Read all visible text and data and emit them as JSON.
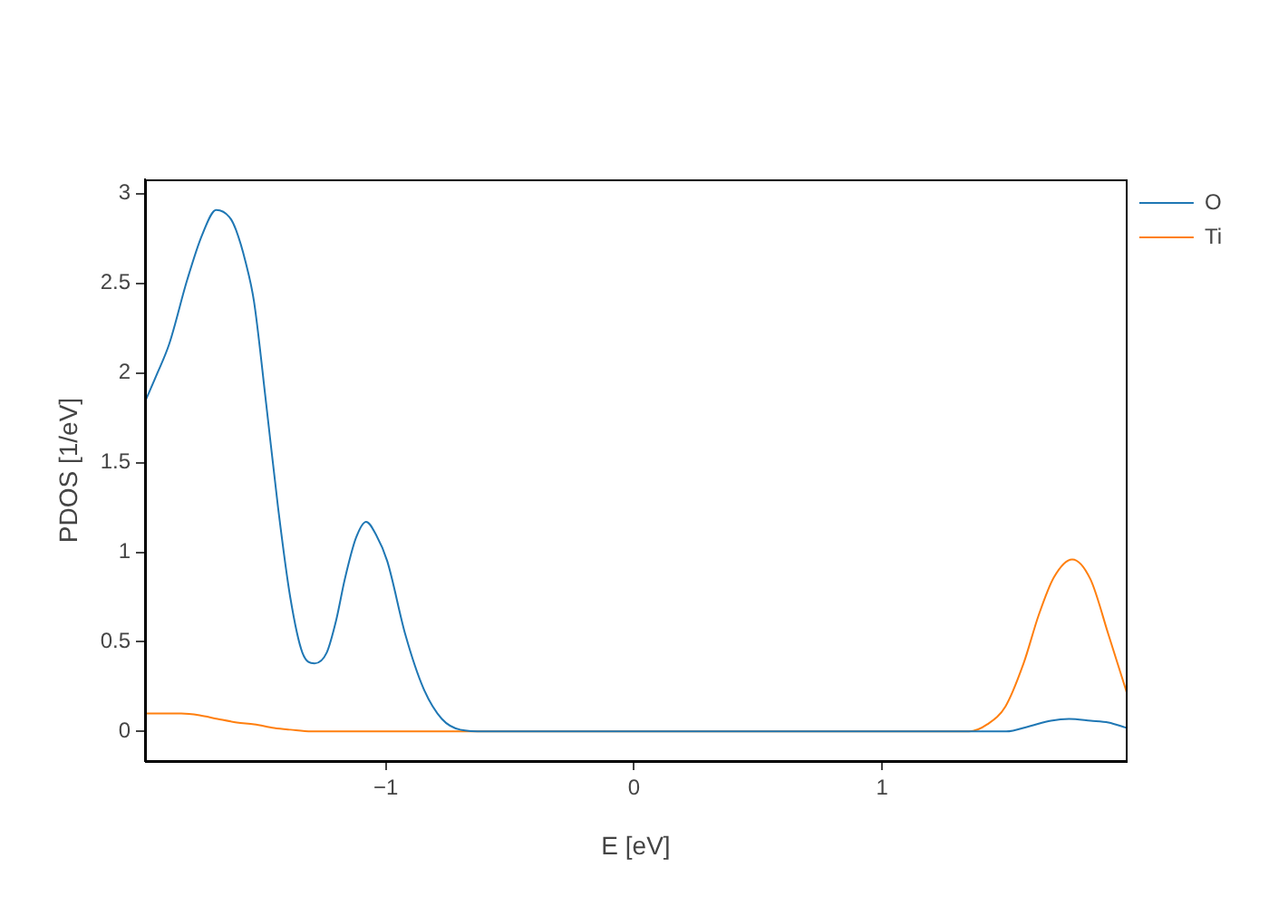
{
  "chart_data": {
    "type": "line",
    "xlabel": "E [eV]",
    "ylabel": "PDOS [1/eV]",
    "xlim": [
      -1.97,
      1.985
    ],
    "ylim": [
      -0.165,
      3.08
    ],
    "xticks": [
      {
        "value": -1,
        "label": "−1"
      },
      0,
      1
    ],
    "yticks": [
      0,
      0.5,
      1,
      1.5,
      2,
      2.5,
      3
    ],
    "grid": false,
    "legend": "top right",
    "series": [
      {
        "name": "O",
        "color": "#1f77b4",
        "x": [
          -1.97,
          -1.92,
          -1.873,
          -1.8,
          -1.74,
          -1.683,
          -1.63,
          -1.604,
          -1.565,
          -1.531,
          -1.482,
          -1.434,
          -1.385,
          -1.336,
          -1.287,
          -1.238,
          -1.2,
          -1.165,
          -1.12,
          -1.079,
          -1.04,
          -0.994,
          -0.921,
          -0.848,
          -0.774,
          -0.7,
          -0.6,
          1.4,
          1.5,
          1.595,
          1.68,
          1.753,
          1.84,
          1.912,
          1.985
        ],
        "values": [
          1.84,
          2.0,
          2.16,
          2.52,
          2.77,
          2.91,
          2.87,
          2.8,
          2.62,
          2.4,
          1.83,
          1.25,
          0.75,
          0.44,
          0.38,
          0.44,
          0.62,
          0.85,
          1.08,
          1.17,
          1.1,
          0.95,
          0.54,
          0.24,
          0.07,
          0.01,
          0,
          0,
          0,
          0.03,
          0.06,
          0.07,
          0.06,
          0.05,
          0.02
        ]
      },
      {
        "name": "Ti",
        "color": "#ff7f0e",
        "x": [
          -1.97,
          -1.824,
          -1.75,
          -1.678,
          -1.6,
          -1.53,
          -1.45,
          -1.385,
          -1.3,
          1.3,
          1.35,
          1.424,
          1.497,
          1.57,
          1.631,
          1.692,
          1.766,
          1.839,
          1.912,
          1.985
        ],
        "values": [
          0.1,
          0.1,
          0.09,
          0.07,
          0.05,
          0.04,
          0.02,
          0.01,
          0,
          0,
          0,
          0.04,
          0.14,
          0.38,
          0.65,
          0.86,
          0.96,
          0.85,
          0.54,
          0.22
        ]
      }
    ]
  }
}
